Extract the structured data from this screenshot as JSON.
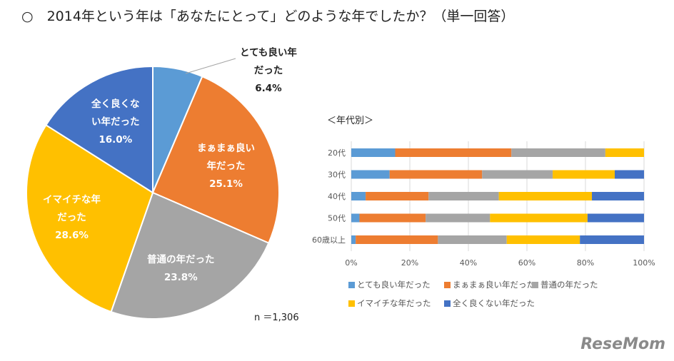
{
  "title": "○　2014年という年は「あなたにとって」どのような年でしたか？（単一回答）",
  "note": "n ＝1,306",
  "watermark": "ReseMom",
  "chart_data": [
    {
      "type": "pie",
      "slices": [
        {
          "label_lines": [
            "とても良い年",
            "だった"
          ],
          "value": 6.4,
          "value_label": "6.4%",
          "color": "#5b9bd5"
        },
        {
          "label_lines": [
            "まぁまぁ良い",
            "年だった"
          ],
          "value": 25.1,
          "value_label": "25.1%",
          "color": "#ed7d31"
        },
        {
          "label_lines": [
            "普通の年だった"
          ],
          "value": 23.8,
          "value_label": "23.8%",
          "color": "#a5a5a5"
        },
        {
          "label_lines": [
            "イマイチな年",
            "だった"
          ],
          "value": 28.6,
          "value_label": "28.6%",
          "color": "#ffc000"
        },
        {
          "label_lines": [
            "全く良くな",
            "い年だった"
          ],
          "value": 16.0,
          "value_label": "16.0%",
          "color": "#4472c4"
        }
      ]
    },
    {
      "type": "bar",
      "orientation": "horizontal",
      "stacked": "percent",
      "title": "＜年代別＞",
      "categories": [
        "20代",
        "30代",
        "40代",
        "50代",
        "60歳以上"
      ],
      "xlim": [
        0,
        100
      ],
      "xticks": [
        "0%",
        "20%",
        "40%",
        "60%",
        "80%",
        "100%"
      ],
      "grid": true,
      "legend": "bottom",
      "series": [
        {
          "name": "とても良い年だった",
          "color": "#5b9bd5",
          "values": [
            15.0,
            13.1,
            4.9,
            2.8,
            1.5
          ]
        },
        {
          "name": "まぁまぁ良い年だった",
          "color": "#ed7d31",
          "values": [
            39.7,
            31.6,
            21.5,
            22.6,
            28.1
          ]
        },
        {
          "name": "普通の年だった",
          "color": "#a5a5a5",
          "values": [
            32.1,
            24.1,
            24.0,
            22.0,
            23.5
          ]
        },
        {
          "name": "イマイチな年だった",
          "color": "#ffc000",
          "values": [
            13.2,
            21.2,
            31.8,
            33.3,
            25.0
          ]
        },
        {
          "name": "全く良くない年だった",
          "color": "#4472c4",
          "values": [
            0.0,
            10.0,
            17.8,
            19.3,
            21.9
          ]
        }
      ]
    }
  ]
}
